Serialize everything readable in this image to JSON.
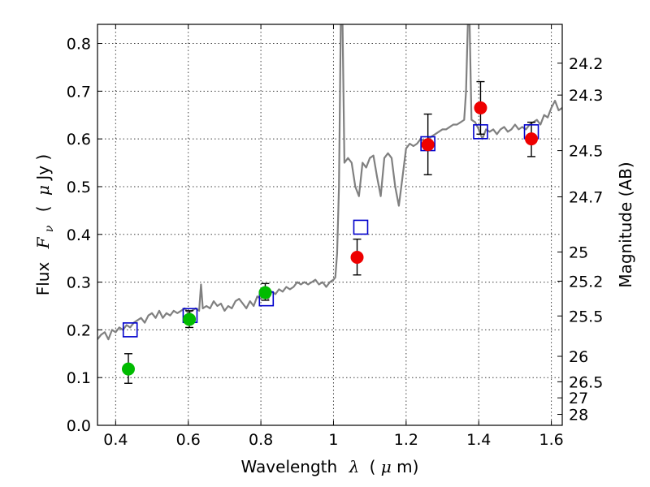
{
  "chart_data": {
    "type": "scatter",
    "xlabel_main": "Wavelength",
    "xlabel_sym": "λ",
    "xlabel_unit_open": "(",
    "xlabel_unit_mu": "μ",
    "xlabel_unit_close": "m)",
    "ylabel_main": "Flux",
    "ylabel_sym": "F",
    "ylabel_sub": "ν",
    "ylabel_unit_open": "(",
    "ylabel_unit_mu": "μ",
    "ylabel_unit_close": "Jy )",
    "y2label": "Magnitude (AB)",
    "xlim": [
      0.35,
      1.63
    ],
    "ylim": [
      0.0,
      0.84
    ],
    "grid": true,
    "x_ticks": [
      0.4,
      0.6,
      0.8,
      1.0,
      1.2,
      1.4,
      1.6
    ],
    "x_tick_labels": [
      "0.4",
      "0.6",
      "0.8",
      "1",
      "1.2",
      "1.4",
      "1.6"
    ],
    "y_ticks": [
      0.0,
      0.1,
      0.2,
      0.3,
      0.4,
      0.5,
      0.6,
      0.7,
      0.8
    ],
    "y_tick_labels": [
      "0.0",
      "0.1",
      "0.2",
      "0.3",
      "0.4",
      "0.5",
      "0.6",
      "0.7",
      "0.8"
    ],
    "y2_ticks": [
      {
        "label": "24.2",
        "value": 24.2
      },
      {
        "label": "24.3",
        "value": 24.3
      },
      {
        "label": "24.5",
        "value": 24.5
      },
      {
        "label": "24.7",
        "value": 24.7
      },
      {
        "label": "25",
        "value": 25.0
      },
      {
        "label": "25.2",
        "value": 25.2
      },
      {
        "label": "25.5",
        "value": 25.5
      },
      {
        "label": "26",
        "value": 26.0
      },
      {
        "label": "26.5",
        "value": 26.5
      },
      {
        "label": "27",
        "value": 27.0
      },
      {
        "label": "28",
        "value": 28.0
      }
    ],
    "series": [
      {
        "kind": "line",
        "color": "#808080",
        "points": [
          [
            0.35,
            0.18
          ],
          [
            0.36,
            0.19
          ],
          [
            0.37,
            0.195
          ],
          [
            0.38,
            0.18
          ],
          [
            0.39,
            0.2
          ],
          [
            0.4,
            0.195
          ],
          [
            0.41,
            0.205
          ],
          [
            0.42,
            0.2
          ],
          [
            0.43,
            0.21
          ],
          [
            0.44,
            0.205
          ],
          [
            0.45,
            0.215
          ],
          [
            0.46,
            0.22
          ],
          [
            0.47,
            0.225
          ],
          [
            0.48,
            0.215
          ],
          [
            0.49,
            0.23
          ],
          [
            0.5,
            0.235
          ],
          [
            0.51,
            0.225
          ],
          [
            0.52,
            0.24
          ],
          [
            0.53,
            0.225
          ],
          [
            0.54,
            0.235
          ],
          [
            0.55,
            0.23
          ],
          [
            0.56,
            0.24
          ],
          [
            0.57,
            0.235
          ],
          [
            0.58,
            0.24
          ],
          [
            0.59,
            0.245
          ],
          [
            0.6,
            0.235
          ],
          [
            0.61,
            0.24
          ],
          [
            0.62,
            0.245
          ],
          [
            0.63,
            0.24
          ],
          [
            0.635,
            0.295
          ],
          [
            0.64,
            0.245
          ],
          [
            0.65,
            0.25
          ],
          [
            0.66,
            0.245
          ],
          [
            0.67,
            0.26
          ],
          [
            0.68,
            0.25
          ],
          [
            0.69,
            0.255
          ],
          [
            0.7,
            0.24
          ],
          [
            0.71,
            0.25
          ],
          [
            0.72,
            0.245
          ],
          [
            0.73,
            0.26
          ],
          [
            0.74,
            0.265
          ],
          [
            0.75,
            0.255
          ],
          [
            0.76,
            0.245
          ],
          [
            0.77,
            0.26
          ],
          [
            0.78,
            0.25
          ],
          [
            0.79,
            0.27
          ],
          [
            0.8,
            0.265
          ],
          [
            0.81,
            0.275
          ],
          [
            0.82,
            0.265
          ],
          [
            0.83,
            0.28
          ],
          [
            0.84,
            0.275
          ],
          [
            0.85,
            0.285
          ],
          [
            0.86,
            0.28
          ],
          [
            0.87,
            0.29
          ],
          [
            0.88,
            0.285
          ],
          [
            0.89,
            0.29
          ],
          [
            0.9,
            0.3
          ],
          [
            0.91,
            0.295
          ],
          [
            0.92,
            0.3
          ],
          [
            0.93,
            0.295
          ],
          [
            0.94,
            0.3
          ],
          [
            0.95,
            0.305
          ],
          [
            0.96,
            0.295
          ],
          [
            0.97,
            0.3
          ],
          [
            0.98,
            0.29
          ],
          [
            0.99,
            0.3
          ],
          [
            1.0,
            0.305
          ],
          [
            1.005,
            0.31
          ],
          [
            1.01,
            0.36
          ],
          [
            1.015,
            0.5
          ],
          [
            1.02,
            0.84
          ],
          [
            1.025,
            0.84
          ],
          [
            1.03,
            0.55
          ],
          [
            1.04,
            0.56
          ],
          [
            1.05,
            0.55
          ],
          [
            1.06,
            0.5
          ],
          [
            1.07,
            0.48
          ],
          [
            1.08,
            0.55
          ],
          [
            1.09,
            0.54
          ],
          [
            1.1,
            0.56
          ],
          [
            1.11,
            0.565
          ],
          [
            1.12,
            0.52
          ],
          [
            1.13,
            0.48
          ],
          [
            1.14,
            0.56
          ],
          [
            1.15,
            0.57
          ],
          [
            1.16,
            0.56
          ],
          [
            1.17,
            0.5
          ],
          [
            1.18,
            0.46
          ],
          [
            1.19,
            0.52
          ],
          [
            1.2,
            0.58
          ],
          [
            1.21,
            0.59
          ],
          [
            1.22,
            0.585
          ],
          [
            1.23,
            0.59
          ],
          [
            1.24,
            0.6
          ],
          [
            1.25,
            0.595
          ],
          [
            1.26,
            0.6
          ],
          [
            1.27,
            0.605
          ],
          [
            1.28,
            0.61
          ],
          [
            1.29,
            0.615
          ],
          [
            1.3,
            0.62
          ],
          [
            1.31,
            0.62
          ],
          [
            1.32,
            0.625
          ],
          [
            1.33,
            0.63
          ],
          [
            1.34,
            0.63
          ],
          [
            1.35,
            0.635
          ],
          [
            1.36,
            0.64
          ],
          [
            1.365,
            0.7
          ],
          [
            1.37,
            0.84
          ],
          [
            1.375,
            0.84
          ],
          [
            1.38,
            0.64
          ],
          [
            1.39,
            0.635
          ],
          [
            1.4,
            0.62
          ],
          [
            1.41,
            0.6
          ],
          [
            1.42,
            0.62
          ],
          [
            1.43,
            0.615
          ],
          [
            1.44,
            0.62
          ],
          [
            1.45,
            0.61
          ],
          [
            1.46,
            0.62
          ],
          [
            1.47,
            0.625
          ],
          [
            1.48,
            0.615
          ],
          [
            1.49,
            0.62
          ],
          [
            1.5,
            0.63
          ],
          [
            1.51,
            0.62
          ],
          [
            1.52,
            0.625
          ],
          [
            1.53,
            0.62
          ],
          [
            1.54,
            0.63
          ],
          [
            1.55,
            0.635
          ],
          [
            1.56,
            0.64
          ],
          [
            1.57,
            0.63
          ],
          [
            1.58,
            0.65
          ],
          [
            1.59,
            0.645
          ],
          [
            1.6,
            0.665
          ],
          [
            1.61,
            0.68
          ],
          [
            1.62,
            0.66
          ],
          [
            1.63,
            0.665
          ]
        ]
      },
      {
        "kind": "open_squares",
        "color": "#0000cc",
        "points": [
          [
            0.44,
            0.2
          ],
          [
            0.605,
            0.23
          ],
          [
            0.815,
            0.265
          ],
          [
            1.075,
            0.415
          ],
          [
            1.26,
            0.59
          ],
          [
            1.405,
            0.615
          ],
          [
            1.545,
            0.615
          ]
        ]
      },
      {
        "kind": "points_with_errors",
        "color": "#00bb00",
        "points": [
          {
            "x": 0.435,
            "y": 0.118,
            "lo": 0.088,
            "hi": 0.15
          },
          {
            "x": 0.603,
            "y": 0.222,
            "lo": 0.205,
            "hi": 0.24
          },
          {
            "x": 0.812,
            "y": 0.278,
            "lo": 0.262,
            "hi": 0.297
          }
        ]
      },
      {
        "kind": "points_with_errors",
        "color": "#ee0000",
        "points": [
          {
            "x": 1.065,
            "y": 0.352,
            "lo": 0.315,
            "hi": 0.39
          },
          {
            "x": 1.26,
            "y": 0.588,
            "lo": 0.525,
            "hi": 0.652
          },
          {
            "x": 1.405,
            "y": 0.665,
            "lo": 0.61,
            "hi": 0.72
          },
          {
            "x": 1.545,
            "y": 0.6,
            "lo": 0.563,
            "hi": 0.635
          }
        ]
      }
    ]
  }
}
